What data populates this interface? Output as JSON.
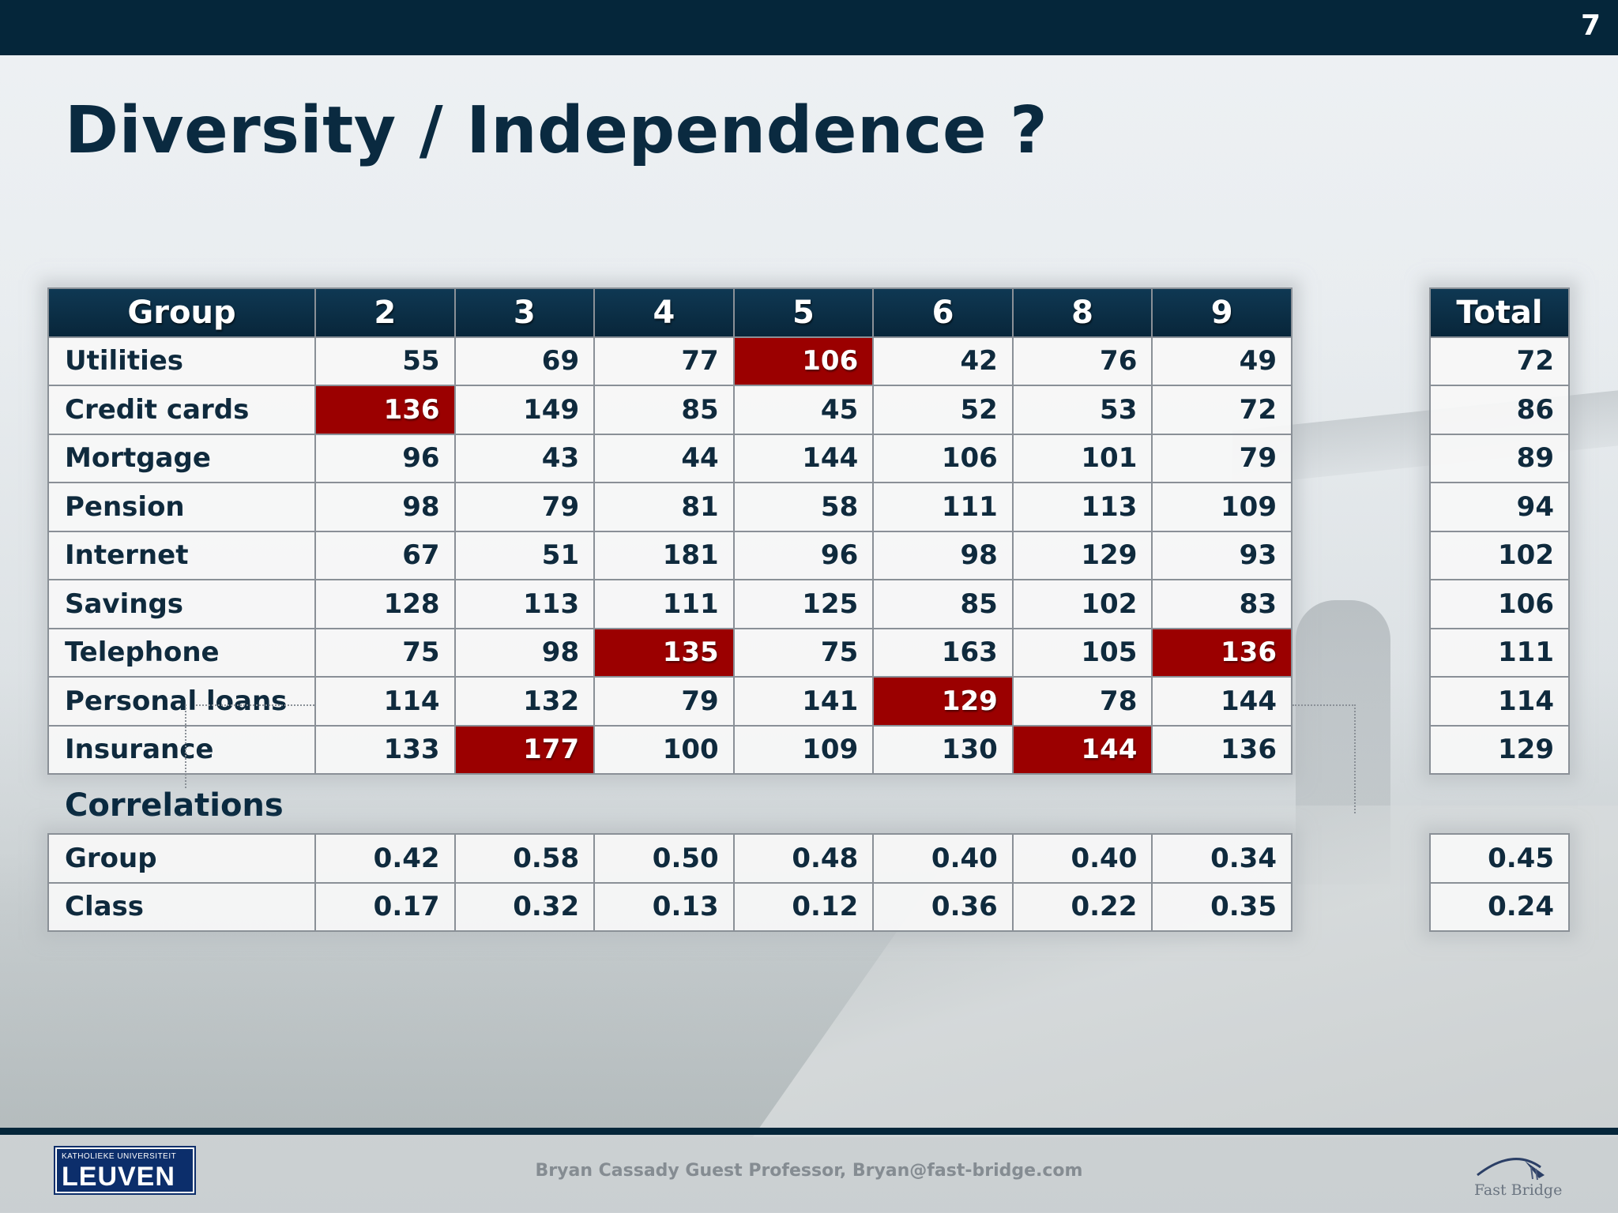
{
  "slide": {
    "number": "7",
    "title": "Diversity / Independence ?"
  },
  "main_table": {
    "header": [
      "Group",
      "2",
      "3",
      "4",
      "5",
      "6",
      "8",
      "9"
    ],
    "rows": [
      {
        "label": "Utilities",
        "values": [
          "55",
          "69",
          "77",
          "106",
          "42",
          "76",
          "49"
        ],
        "highlight": [
          3
        ]
      },
      {
        "label": "Credit cards",
        "values": [
          "136",
          "149",
          "85",
          "45",
          "52",
          "53",
          "72"
        ],
        "highlight": [
          0
        ]
      },
      {
        "label": "Mortgage",
        "values": [
          "96",
          "43",
          "44",
          "144",
          "106",
          "101",
          "79"
        ],
        "highlight": []
      },
      {
        "label": "Pension",
        "values": [
          "98",
          "79",
          "81",
          "58",
          "111",
          "113",
          "109"
        ],
        "highlight": []
      },
      {
        "label": "Internet",
        "values": [
          "67",
          "51",
          "181",
          "96",
          "98",
          "129",
          "93"
        ],
        "highlight": []
      },
      {
        "label": "Savings",
        "values": [
          "128",
          "113",
          "111",
          "125",
          "85",
          "102",
          "83"
        ],
        "highlight": []
      },
      {
        "label": "Telephone",
        "values": [
          "75",
          "98",
          "135",
          "75",
          "163",
          "105",
          "136"
        ],
        "highlight": [
          2,
          6
        ]
      },
      {
        "label": "Personal loans",
        "values": [
          "114",
          "132",
          "79",
          "141",
          "129",
          "78",
          "144"
        ],
        "highlight": [
          4
        ]
      },
      {
        "label": "Insurance",
        "values": [
          "133",
          "177",
          "100",
          "109",
          "130",
          "144",
          "136"
        ],
        "highlight": [
          1,
          5
        ]
      }
    ]
  },
  "total_table": {
    "header": "Total",
    "values": [
      "72",
      "86",
      "89",
      "94",
      "102",
      "106",
      "111",
      "114",
      "129"
    ]
  },
  "correlations": {
    "heading": "Correlations",
    "rows": [
      {
        "label": "Group",
        "values": [
          "0.42",
          "0.58",
          "0.50",
          "0.48",
          "0.40",
          "0.40",
          "0.34"
        ],
        "total": "0.45"
      },
      {
        "label": "Class",
        "values": [
          "0.17",
          "0.32",
          "0.13",
          "0.12",
          "0.36",
          "0.22",
          "0.35"
        ],
        "total": "0.24"
      }
    ]
  },
  "footer": {
    "text": "Bryan Cassady Guest Professor, Bryan@fast-bridge.com",
    "leuven_logo_top": "KATHOLIEKE UNIVERSITEIT",
    "leuven_logo_main": "LEUVEN",
    "fastbridge_logo": "Fast Bridge"
  },
  "colors": {
    "header_bg": "#05263a",
    "highlight": "#9b0000",
    "text": "#0f2a3d"
  }
}
